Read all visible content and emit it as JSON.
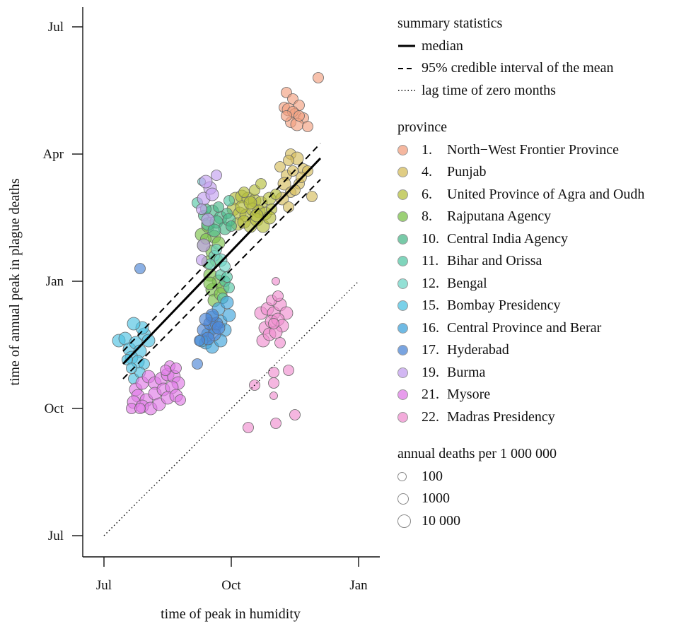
{
  "chart_data": {
    "type": "scatter",
    "xlabel": "time of peak in humidity",
    "ylabel": "time of annual peak in plague deaths",
    "x_ticks": [
      "Jul",
      "Oct",
      "Jan"
    ],
    "y_ticks": [
      "Jul",
      "Oct",
      "Jan",
      "Apr",
      "Jul"
    ],
    "x_unit": "months after 1 Jul",
    "y_unit": "months after 1 Jul",
    "xlim": [
      -0.5,
      6.5
    ],
    "ylim": [
      -0.2,
      12.4
    ],
    "lines": [
      {
        "name": "median",
        "style": "solid",
        "x": [
          0.45,
          5.1
        ],
        "y": [
          4.05,
          8.9
        ]
      },
      {
        "name": "95% credible interval of the mean",
        "style": "dashed",
        "x": [
          0.45,
          5.1
        ],
        "y": [
          4.35,
          9.25
        ]
      },
      {
        "name": "95% credible interval of the mean",
        "style": "dashed",
        "x": [
          0.45,
          5.1
        ],
        "y": [
          3.7,
          8.4
        ]
      },
      {
        "name": "lag time of zero months",
        "style": "dotted",
        "x": [
          0,
          6
        ],
        "y": [
          0,
          6
        ]
      }
    ],
    "series": [
      {
        "label": "1.  North−West Frontier Province",
        "color": "#f2a07f",
        "points": [
          [
            5.05,
            10.8,
            2
          ],
          [
            4.3,
            10.45,
            2
          ],
          [
            4.45,
            10.3,
            2
          ],
          [
            4.6,
            10.15,
            2
          ],
          [
            4.25,
            10.1,
            2
          ],
          [
            4.35,
            10.05,
            3
          ],
          [
            4.5,
            9.95,
            2
          ],
          [
            4.7,
            9.85,
            2
          ],
          [
            4.4,
            9.75,
            2
          ],
          [
            4.55,
            9.7,
            3
          ],
          [
            4.8,
            9.65,
            2
          ],
          [
            4.45,
            10.0,
            2
          ],
          [
            4.6,
            9.9,
            2
          ],
          [
            4.3,
            9.9,
            2
          ]
        ]
      },
      {
        "label": "4.  Punjab",
        "color": "#d6bd5c",
        "points": [
          [
            4.4,
            9.0,
            2
          ],
          [
            4.15,
            8.7,
            2
          ],
          [
            4.55,
            8.9,
            3
          ],
          [
            4.7,
            8.65,
            2
          ],
          [
            4.3,
            8.5,
            2
          ],
          [
            4.8,
            8.6,
            2
          ],
          [
            4.25,
            8.3,
            3
          ],
          [
            4.6,
            8.3,
            2
          ],
          [
            4.9,
            8.0,
            2
          ],
          [
            4.4,
            8.1,
            2
          ],
          [
            4.2,
            7.95,
            3
          ],
          [
            4.35,
            7.75,
            2
          ],
          [
            4.45,
            8.6,
            2
          ],
          [
            4.35,
            8.85,
            2
          ],
          [
            4.5,
            8.15,
            2
          ],
          [
            4.65,
            8.45,
            2
          ]
        ]
      },
      {
        "label": "6.  United Province of Agra and Oudh",
        "color": "#b6bf3e",
        "points": [
          [
            3.1,
            7.95,
            3
          ],
          [
            3.25,
            8.0,
            3
          ],
          [
            3.4,
            7.95,
            3
          ],
          [
            3.55,
            7.9,
            3
          ],
          [
            3.7,
            7.85,
            3
          ],
          [
            3.9,
            7.95,
            3
          ],
          [
            4.05,
            8.05,
            2
          ],
          [
            3.3,
            8.1,
            2
          ],
          [
            3.05,
            7.7,
            3
          ],
          [
            3.2,
            7.6,
            3
          ],
          [
            3.35,
            7.55,
            3
          ],
          [
            3.5,
            7.7,
            3
          ],
          [
            3.65,
            7.65,
            3
          ],
          [
            3.8,
            7.6,
            3
          ],
          [
            3.95,
            7.7,
            2
          ],
          [
            3.15,
            7.35,
            3
          ],
          [
            3.3,
            7.4,
            3
          ],
          [
            3.45,
            7.3,
            3
          ],
          [
            3.6,
            7.45,
            3
          ],
          [
            3.75,
            7.3,
            3
          ],
          [
            3.9,
            7.5,
            3
          ],
          [
            3.25,
            7.75,
            3
          ],
          [
            3.55,
            8.15,
            2
          ],
          [
            3.7,
            8.3,
            2
          ],
          [
            3.45,
            7.85,
            3
          ],
          [
            3.6,
            7.55,
            3
          ]
        ]
      },
      {
        "label": "8.  Rajputana Agency",
        "color": "#7bc149",
        "points": [
          [
            2.3,
            7.1,
            3
          ],
          [
            2.45,
            7.3,
            3
          ],
          [
            2.6,
            7.05,
            3
          ],
          [
            2.35,
            6.85,
            3
          ],
          [
            2.55,
            6.7,
            3
          ],
          [
            2.7,
            6.9,
            3
          ],
          [
            2.45,
            6.45,
            3
          ],
          [
            2.65,
            6.5,
            3
          ],
          [
            2.5,
            6.15,
            3
          ],
          [
            2.7,
            6.0,
            3
          ],
          [
            2.55,
            5.8,
            3
          ],
          [
            2.8,
            5.85,
            3
          ],
          [
            2.6,
            5.55,
            3
          ],
          [
            2.75,
            5.7,
            3
          ],
          [
            2.5,
            5.95,
            3
          ],
          [
            2.4,
            7.0,
            2
          ]
        ]
      },
      {
        "label": "10. Central India Agency",
        "color": "#4cb98b",
        "points": [
          [
            2.35,
            7.55,
            2
          ],
          [
            2.55,
            7.65,
            3
          ],
          [
            2.75,
            7.5,
            3
          ],
          [
            2.9,
            7.6,
            2
          ],
          [
            2.45,
            7.35,
            3
          ],
          [
            2.65,
            7.4,
            3
          ],
          [
            2.85,
            7.25,
            3
          ],
          [
            2.6,
            7.2,
            3
          ],
          [
            2.95,
            7.45,
            3
          ],
          [
            2.4,
            7.7,
            2
          ],
          [
            3.0,
            7.3,
            2
          ],
          [
            2.7,
            7.75,
            2
          ]
        ]
      },
      {
        "label": "11. Bihar and Orissa",
        "color": "#56c7a6",
        "points": [
          [
            2.85,
            6.0,
            2
          ],
          [
            2.95,
            5.85,
            2
          ],
          [
            2.75,
            6.15,
            2
          ],
          [
            2.95,
            7.9,
            2
          ],
          [
            2.2,
            7.85,
            2
          ],
          [
            2.9,
            6.1,
            2
          ],
          [
            2.8,
            5.6,
            2
          ]
        ]
      },
      {
        "label": "12. Bengal",
        "color": "#6fd6c8",
        "points": [
          [
            2.6,
            6.6,
            2
          ],
          [
            2.75,
            6.5,
            3
          ],
          [
            2.5,
            6.4,
            2
          ],
          [
            2.3,
            8.35,
            1
          ],
          [
            2.85,
            6.35,
            2
          ],
          [
            2.65,
            6.75,
            2
          ]
        ]
      },
      {
        "label": "15. Bombay Presidency",
        "color": "#4ec2e2",
        "points": [
          [
            0.35,
            4.6,
            3
          ],
          [
            0.5,
            4.65,
            3
          ],
          [
            0.6,
            4.4,
            3
          ],
          [
            0.75,
            4.55,
            3
          ],
          [
            0.85,
            4.35,
            3
          ],
          [
            0.65,
            4.2,
            3
          ],
          [
            0.8,
            4.1,
            3
          ],
          [
            0.95,
            4.75,
            3
          ],
          [
            1.05,
            4.6,
            3
          ],
          [
            0.9,
            4.9,
            3
          ],
          [
            0.7,
            5.0,
            3
          ],
          [
            0.55,
            4.15,
            2
          ],
          [
            0.95,
            4.05,
            2
          ],
          [
            0.7,
            3.7,
            2
          ],
          [
            0.85,
            3.85,
            2
          ],
          [
            0.65,
            3.95,
            2
          ]
        ]
      },
      {
        "label": "16. Central Province and Berar",
        "color": "#3fa4dc",
        "points": [
          [
            2.45,
            4.75,
            3
          ],
          [
            2.6,
            4.9,
            3
          ],
          [
            2.75,
            5.05,
            3
          ],
          [
            2.85,
            4.85,
            3
          ],
          [
            2.95,
            5.2,
            3
          ],
          [
            2.55,
            5.15,
            3
          ],
          [
            2.7,
            5.35,
            3
          ],
          [
            2.9,
            5.5,
            3
          ],
          [
            2.4,
            4.55,
            3
          ],
          [
            2.55,
            4.45,
            3
          ],
          [
            2.3,
            4.6,
            3
          ],
          [
            2.75,
            4.6,
            3
          ]
        ]
      },
      {
        "label": "17. Hyderabad",
        "color": "#4d86d6",
        "points": [
          [
            2.35,
            4.85,
            3
          ],
          [
            2.5,
            5.0,
            3
          ],
          [
            2.6,
            4.75,
            3
          ],
          [
            2.45,
            4.65,
            3
          ],
          [
            2.65,
            5.0,
            3
          ],
          [
            2.55,
            5.2,
            3
          ],
          [
            2.7,
            4.9,
            3
          ],
          [
            2.4,
            5.1,
            3
          ],
          [
            2.25,
            4.6,
            2
          ],
          [
            2.2,
            4.05,
            2
          ],
          [
            0.85,
            6.3,
            2
          ]
        ]
      },
      {
        "label": "19. Burma",
        "color": "#c39ff0",
        "points": [
          [
            2.35,
            7.95,
            3
          ],
          [
            2.5,
            8.2,
            3
          ],
          [
            2.65,
            8.5,
            2
          ],
          [
            2.4,
            8.35,
            3
          ],
          [
            2.55,
            8.05,
            3
          ],
          [
            2.3,
            7.7,
            2
          ],
          [
            2.45,
            7.45,
            3
          ],
          [
            2.3,
            6.5,
            2
          ],
          [
            2.35,
            6.85,
            3
          ]
        ]
      },
      {
        "label": "21. Mysore",
        "color": "#e07be6",
        "points": [
          [
            0.75,
            3.45,
            3
          ],
          [
            0.9,
            3.6,
            3
          ],
          [
            1.05,
            3.75,
            3
          ],
          [
            1.2,
            3.6,
            3
          ],
          [
            1.35,
            3.7,
            3
          ],
          [
            1.5,
            3.8,
            3
          ],
          [
            1.65,
            3.75,
            3
          ],
          [
            1.75,
            3.6,
            3
          ],
          [
            0.8,
            3.3,
            3
          ],
          [
            1.0,
            3.2,
            3
          ],
          [
            1.2,
            3.35,
            3
          ],
          [
            1.4,
            3.45,
            3
          ],
          [
            1.6,
            3.5,
            3
          ],
          [
            0.7,
            3.15,
            3
          ],
          [
            0.9,
            3.05,
            3
          ],
          [
            1.1,
            3.0,
            3
          ],
          [
            1.3,
            3.1,
            3
          ],
          [
            1.5,
            3.25,
            3
          ],
          [
            1.7,
            3.3,
            3
          ],
          [
            0.65,
            3.0,
            2
          ],
          [
            0.85,
            3.0,
            2
          ],
          [
            1.55,
            4.0,
            2
          ],
          [
            1.45,
            3.9,
            2
          ],
          [
            1.7,
            3.95,
            2
          ],
          [
            1.8,
            3.2,
            2
          ]
        ]
      },
      {
        "label": "22. Madras Presidency",
        "color": "#ef8fd0",
        "points": [
          [
            3.7,
            5.25,
            3
          ],
          [
            3.85,
            5.35,
            3
          ],
          [
            4.0,
            5.25,
            3
          ],
          [
            4.15,
            5.45,
            3
          ],
          [
            4.3,
            5.25,
            3
          ],
          [
            3.8,
            4.9,
            3
          ],
          [
            3.95,
            5.05,
            3
          ],
          [
            4.1,
            5.1,
            3
          ],
          [
            4.2,
            4.95,
            3
          ],
          [
            3.75,
            4.6,
            3
          ],
          [
            3.9,
            4.75,
            3
          ],
          [
            4.05,
            4.8,
            3
          ],
          [
            3.95,
            5.55,
            2
          ],
          [
            4.1,
            5.65,
            2
          ],
          [
            4.0,
            5.0,
            2
          ],
          [
            4.15,
            4.55,
            2
          ],
          [
            4.05,
            6.0,
            1
          ],
          [
            4.0,
            3.85,
            2
          ],
          [
            3.55,
            3.55,
            2
          ],
          [
            4.0,
            3.6,
            2
          ],
          [
            4.35,
            3.9,
            2
          ],
          [
            4.5,
            2.85,
            2
          ],
          [
            4.05,
            2.65,
            2
          ],
          [
            3.4,
            2.55,
            2
          ],
          [
            4.0,
            3.3,
            1
          ]
        ]
      }
    ],
    "size_legend": [
      "100",
      "1000",
      "10 000"
    ]
  },
  "legend": {
    "summary_title": "summary statistics",
    "summary_items": [
      {
        "style": "solid",
        "label": "median"
      },
      {
        "style": "dashed",
        "label": "95% credible interval of the mean"
      },
      {
        "style": "dotted",
        "label": "lag time of zero months"
      }
    ],
    "province_title": "province",
    "provinces": [
      {
        "num": "1.",
        "name": "North−West Frontier Province",
        "color": "#f2a07f"
      },
      {
        "num": "4.",
        "name": "Punjab",
        "color": "#d6bd5c"
      },
      {
        "num": "6.",
        "name": "United Province of Agra and Oudh",
        "color": "#b6bf3e"
      },
      {
        "num": "8.",
        "name": "Rajputana Agency",
        "color": "#7bc149"
      },
      {
        "num": "10.",
        "name": "Central India Agency",
        "color": "#4cb98b"
      },
      {
        "num": "11.",
        "name": "Bihar and Orissa",
        "color": "#56c7a6"
      },
      {
        "num": "12.",
        "name": "Bengal",
        "color": "#6fd6c8"
      },
      {
        "num": "15.",
        "name": "Bombay Presidency",
        "color": "#4ec2e2"
      },
      {
        "num": "16.",
        "name": "Central Province and Berar",
        "color": "#3fa4dc"
      },
      {
        "num": "17.",
        "name": "Hyderabad",
        "color": "#4d86d6"
      },
      {
        "num": "19.",
        "name": "Burma",
        "color": "#c39ff0"
      },
      {
        "num": "21.",
        "name": "Mysore",
        "color": "#e07be6"
      },
      {
        "num": "22.",
        "name": "Madras Presidency",
        "color": "#ef8fd0"
      }
    ],
    "deaths_title": "annual deaths per 1 000 000",
    "deaths_items": [
      "100",
      "1000",
      "10 000"
    ]
  }
}
